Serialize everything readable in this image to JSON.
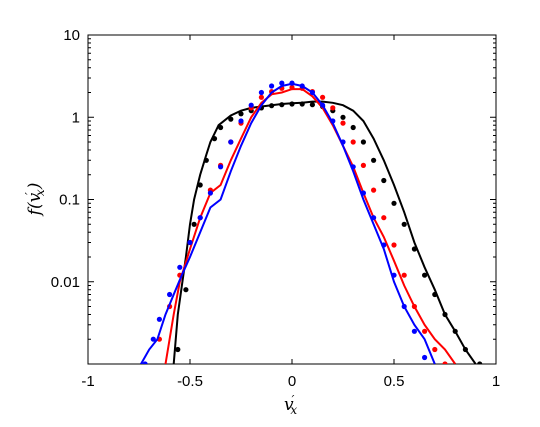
{
  "chart_data": {
    "type": "line",
    "title": "",
    "xlabel": "v",
    "xlabel_sub": "x",
    "xlabel_prime": "′",
    "ylabel_left": "f(v",
    "ylabel_sub": "x",
    "ylabel_prime": "′",
    "ylabel_right": ")",
    "xlim": [
      -1,
      1
    ],
    "ylim": [
      0.001,
      10
    ],
    "yscale": "log",
    "grid": false,
    "legend": "none",
    "x_ticks": [
      -1,
      -0.5,
      0,
      0.5,
      1
    ],
    "x_tick_labels": [
      "-1",
      "-0.5",
      "0",
      "0.5",
      "1"
    ],
    "y_ticks": [
      0.01,
      0.1,
      1,
      10
    ],
    "y_tick_labels": [
      "0.01",
      "0.1",
      "1",
      "10"
    ],
    "series": [
      {
        "color": "#000000",
        "style": "solid",
        "x": [
          -0.58,
          -0.56,
          -0.52,
          -0.5,
          -0.48,
          -0.45,
          -0.42,
          -0.4,
          -0.36,
          -0.3,
          -0.25,
          -0.2,
          -0.15,
          -0.1,
          -0.05,
          0,
          0.05,
          0.1,
          0.15,
          0.2,
          0.25,
          0.3,
          0.35,
          0.4,
          0.45,
          0.5,
          0.55,
          0.6,
          0.65,
          0.7,
          0.75,
          0.8,
          0.85,
          0.9
        ],
        "y": [
          0.001,
          0.004,
          0.02,
          0.05,
          0.1,
          0.2,
          0.35,
          0.5,
          0.8,
          1.05,
          1.2,
          1.3,
          1.35,
          1.4,
          1.45,
          1.48,
          1.5,
          1.55,
          1.55,
          1.5,
          1.4,
          1.2,
          0.9,
          0.55,
          0.3,
          0.15,
          0.07,
          0.03,
          0.015,
          0.008,
          0.004,
          0.0025,
          0.0015,
          0.001
        ]
      },
      {
        "color": "#000000",
        "style": "dotted",
        "x": [
          -0.56,
          -0.52,
          -0.48,
          -0.45,
          -0.42,
          -0.38,
          -0.35,
          -0.3,
          -0.25,
          -0.2,
          -0.15,
          -0.1,
          -0.05,
          0,
          0.05,
          0.1,
          0.15,
          0.2,
          0.25,
          0.3,
          0.35,
          0.4,
          0.45,
          0.5,
          0.55,
          0.6,
          0.65,
          0.7,
          0.75,
          0.8,
          0.85,
          0.92
        ],
        "y": [
          0.0015,
          0.008,
          0.05,
          0.15,
          0.3,
          0.55,
          0.75,
          0.95,
          1.1,
          1.2,
          1.3,
          1.38,
          1.42,
          1.45,
          1.45,
          1.42,
          1.35,
          1.2,
          1.0,
          0.75,
          0.5,
          0.3,
          0.17,
          0.09,
          0.05,
          0.025,
          0.012,
          0.007,
          0.004,
          0.0025,
          0.0015,
          0.001
        ]
      },
      {
        "color": "#ff0000",
        "style": "solid",
        "x": [
          -0.62,
          -0.58,
          -0.55,
          -0.5,
          -0.45,
          -0.4,
          -0.35,
          -0.3,
          -0.25,
          -0.2,
          -0.15,
          -0.1,
          -0.05,
          0,
          0.05,
          0.1,
          0.15,
          0.2,
          0.25,
          0.3,
          0.35,
          0.4,
          0.45,
          0.5,
          0.55,
          0.6,
          0.65,
          0.7,
          0.75,
          0.8
        ],
        "y": [
          0.001,
          0.004,
          0.01,
          0.025,
          0.06,
          0.12,
          0.15,
          0.3,
          0.55,
          1.0,
          1.5,
          1.9,
          2.0,
          2.2,
          2.2,
          1.8,
          1.3,
          0.8,
          0.45,
          0.25,
          0.12,
          0.06,
          0.035,
          0.018,
          0.009,
          0.005,
          0.003,
          0.002,
          0.0015,
          0.001
        ]
      },
      {
        "color": "#ff0000",
        "style": "dotted",
        "x": [
          -0.65,
          -0.6,
          -0.55,
          -0.5,
          -0.45,
          -0.4,
          -0.35,
          -0.3,
          -0.25,
          -0.2,
          -0.15,
          -0.1,
          -0.05,
          0,
          0.05,
          0.1,
          0.15,
          0.2,
          0.25,
          0.3,
          0.35,
          0.4,
          0.45,
          0.5,
          0.55,
          0.6,
          0.65,
          0.7,
          0.75
        ],
        "y": [
          0.002,
          0.005,
          0.012,
          0.03,
          0.06,
          0.13,
          0.26,
          0.5,
          0.85,
          1.3,
          1.75,
          2.05,
          2.25,
          2.3,
          2.25,
          2.05,
          1.75,
          1.3,
          0.85,
          0.5,
          0.26,
          0.13,
          0.06,
          0.028,
          0.012,
          0.005,
          0.0025,
          0.0015,
          0.001
        ]
      },
      {
        "color": "#0000ff",
        "style": "solid",
        "x": [
          -0.74,
          -0.7,
          -0.66,
          -0.62,
          -0.58,
          -0.54,
          -0.5,
          -0.45,
          -0.4,
          -0.35,
          -0.3,
          -0.25,
          -0.2,
          -0.15,
          -0.1,
          -0.05,
          0,
          0.05,
          0.1,
          0.15,
          0.2,
          0.25,
          0.3,
          0.35,
          0.4,
          0.45,
          0.5,
          0.55,
          0.6,
          0.65,
          0.7
        ],
        "y": [
          0.001,
          0.0015,
          0.002,
          0.004,
          0.007,
          0.012,
          0.02,
          0.04,
          0.08,
          0.1,
          0.22,
          0.45,
          0.85,
          1.4,
          2.0,
          2.4,
          2.55,
          2.4,
          2.0,
          1.4,
          0.85,
          0.45,
          0.22,
          0.1,
          0.05,
          0.025,
          0.01,
          0.005,
          0.003,
          0.002,
          0.001
        ]
      },
      {
        "color": "#0000ff",
        "style": "dotted",
        "x": [
          -0.72,
          -0.68,
          -0.65,
          -0.6,
          -0.55,
          -0.5,
          -0.45,
          -0.4,
          -0.35,
          -0.3,
          -0.25,
          -0.2,
          -0.15,
          -0.1,
          -0.05,
          0,
          0.05,
          0.1,
          0.15,
          0.2,
          0.25,
          0.3,
          0.35,
          0.4,
          0.45,
          0.5,
          0.55,
          0.6,
          0.65
        ],
        "y": [
          0.001,
          0.002,
          0.0035,
          0.007,
          0.015,
          0.03,
          0.06,
          0.12,
          0.25,
          0.5,
          0.9,
          1.4,
          2.0,
          2.4,
          2.6,
          2.6,
          2.4,
          2.0,
          1.4,
          0.9,
          0.5,
          0.25,
          0.12,
          0.06,
          0.028,
          0.012,
          0.005,
          0.0025,
          0.0012
        ]
      }
    ]
  }
}
